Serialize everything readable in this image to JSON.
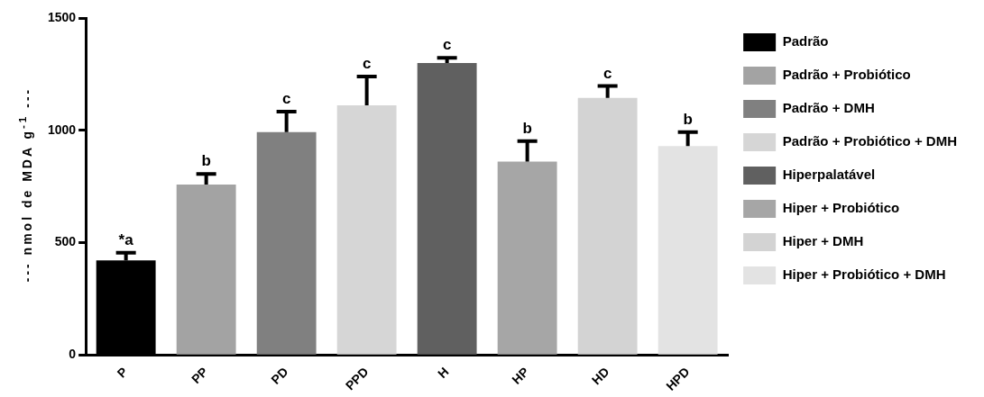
{
  "chart_data": {
    "type": "bar",
    "ylabel": "--- nmol de MDA g$^{-1}$ ---",
    "categories": [
      "P",
      "PP",
      "PD",
      "PPD",
      "H",
      "HP",
      "HD",
      "HPD"
    ],
    "series": [
      {
        "name": "Padrão",
        "color": "#000000",
        "values": [
          421,
          null,
          null,
          null,
          null,
          null,
          null,
          null
        ],
        "errors": [
          34,
          null,
          null,
          null,
          null,
          null,
          null,
          null
        ]
      },
      {
        "name": "Padrão + Probiótico",
        "color": "#a3a3a3",
        "values": [
          null,
          758,
          null,
          null,
          null,
          null,
          null,
          null
        ],
        "errors": [
          null,
          48,
          null,
          null,
          null,
          null,
          null,
          null
        ]
      },
      {
        "name": "Padrão + DMH",
        "color": "#808080",
        "values": [
          null,
          null,
          992,
          null,
          null,
          null,
          null,
          null
        ],
        "errors": [
          null,
          null,
          91,
          null,
          null,
          null,
          null,
          null
        ]
      },
      {
        "name": "Padrão + Probiótico + DMH",
        "color": "#d6d6d6",
        "values": [
          null,
          null,
          null,
          1111,
          null,
          null,
          null,
          null
        ],
        "errors": [
          null,
          null,
          null,
          128,
          null,
          null,
          null,
          null
        ]
      },
      {
        "name": "Hiperpalatável",
        "color": "#606060",
        "values": [
          null,
          null,
          null,
          null,
          1300,
          null,
          null,
          null
        ],
        "errors": [
          null,
          null,
          null,
          null,
          23,
          null,
          null,
          null
        ]
      },
      {
        "name": "Hiper + Probiótico",
        "color": "#a6a6a6",
        "values": [
          null,
          null,
          null,
          null,
          null,
          861,
          null,
          null
        ],
        "errors": [
          null,
          null,
          null,
          null,
          null,
          91,
          null,
          null
        ]
      },
      {
        "name": "Hiper + DMH",
        "color": "#d3d3d3",
        "values": [
          null,
          null,
          null,
          null,
          null,
          null,
          1144,
          null
        ],
        "errors": [
          null,
          null,
          null,
          null,
          null,
          null,
          53,
          null
        ]
      },
      {
        "name": "Hiper + Probiótico + DMH",
        "color": "#e3e3e3",
        "values": [
          null,
          null,
          null,
          null,
          null,
          null,
          null,
          930
        ],
        "errors": [
          null,
          null,
          null,
          null,
          null,
          null,
          null,
          62
        ]
      }
    ],
    "ylim": [
      0,
      1500
    ],
    "yticks": [
      0,
      500,
      1000,
      1500
    ],
    "grid": false,
    "legend": "right",
    "annotations": [
      {
        "text": "*a",
        "x": "P",
        "y": 455
      },
      {
        "text": "b",
        "x": "PP",
        "y": 806
      },
      {
        "text": "c",
        "x": "PD",
        "y": 1083
      },
      {
        "text": "c",
        "x": "PPD",
        "y": 1239
      },
      {
        "text": "c",
        "x": "H",
        "y": 1323
      },
      {
        "text": "b",
        "x": "HP",
        "y": 952
      },
      {
        "text": "c",
        "x": "HD",
        "y": 1197
      },
      {
        "text": "b",
        "x": "HPD",
        "y": 992
      }
    ]
  }
}
